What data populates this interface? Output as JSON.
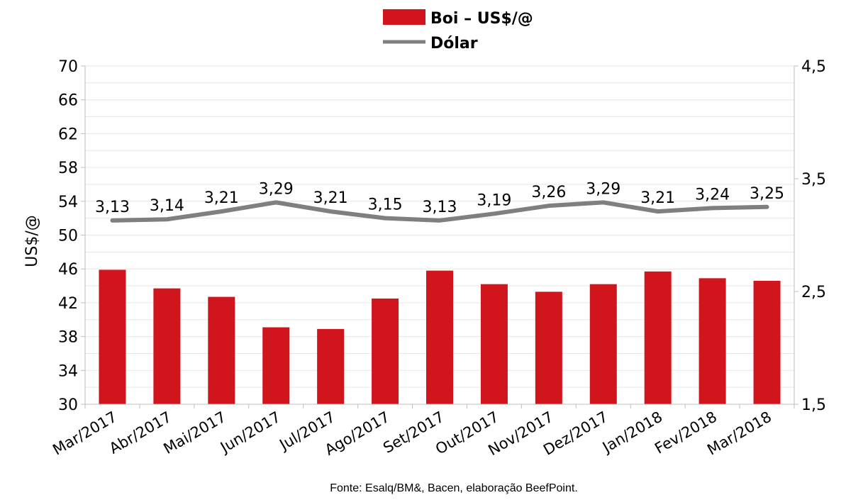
{
  "chart_data": {
    "type": "bar+line",
    "categories": [
      "Mar/2017",
      "Abr/2017",
      "Mai/2017",
      "Jun/2017",
      "Jul/2017",
      "Ago/2017",
      "Set/2017",
      "Out/2017",
      "Nov/2017",
      "Dez/2017",
      "Jan/2018",
      "Fev/2018",
      "Mar/2018"
    ],
    "series": [
      {
        "name": "Boi – US$/@",
        "kind": "bar",
        "axis": "left",
        "color": "#d0151d",
        "values": [
          45.9,
          43.7,
          42.7,
          39.1,
          38.9,
          42.5,
          45.8,
          44.2,
          43.3,
          44.2,
          45.7,
          44.9,
          44.6
        ]
      },
      {
        "name": "Dólar",
        "kind": "line",
        "axis": "right",
        "color": "#7f7f7f",
        "values": [
          3.13,
          3.14,
          3.21,
          3.29,
          3.21,
          3.15,
          3.13,
          3.19,
          3.26,
          3.29,
          3.21,
          3.24,
          3.25
        ],
        "labels": [
          "3,13",
          "3,14",
          "3,21",
          "3,29",
          "3,21",
          "3,15",
          "3,13",
          "3,19",
          "3,26",
          "3,29",
          "3,21",
          "3,24",
          "3,25"
        ]
      }
    ],
    "ylabel": "US$/@",
    "ylim": [
      30,
      70
    ],
    "y_ticks": [
      "30",
      "34",
      "38",
      "42",
      "46",
      "50",
      "54",
      "58",
      "62",
      "66",
      "70"
    ],
    "y2lim": [
      1.5,
      4.5
    ],
    "y2_ticks": [
      "1,5",
      "2,5",
      "3,5",
      "4,5"
    ],
    "grid": true,
    "legend_position": "top"
  },
  "source_note": "Fonte: Esalq/BM&, Bacen, elaboração BeefPoint."
}
